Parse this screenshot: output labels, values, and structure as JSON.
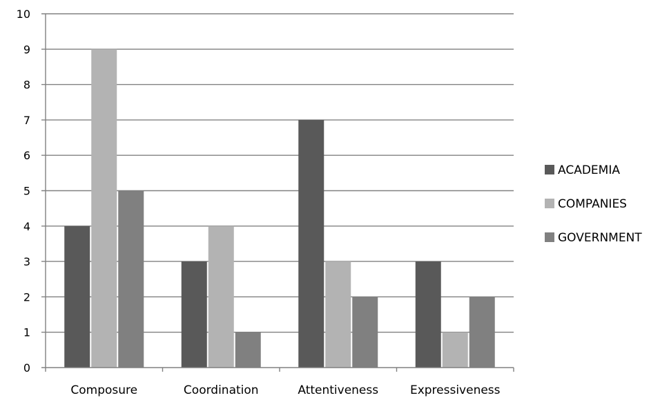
{
  "chart_data": {
    "type": "bar",
    "categories": [
      "Composure",
      "Coordination",
      "Attentiveness",
      "Expressiveness"
    ],
    "series": [
      {
        "name": "ACADEMIA",
        "values": [
          4,
          3,
          7,
          3
        ],
        "color": "#595959"
      },
      {
        "name": "COMPANIES",
        "values": [
          9,
          4,
          3,
          1
        ],
        "color": "#b3b3b3"
      },
      {
        "name": "GOVERNMENT",
        "values": [
          5,
          1,
          2,
          2
        ],
        "color": "#808080"
      }
    ],
    "ylim": [
      0,
      10
    ],
    "yticks": [
      0,
      1,
      2,
      3,
      4,
      5,
      6,
      7,
      8,
      9,
      10
    ],
    "grid": true,
    "legend_position": "right",
    "title": "",
    "xlabel": "",
    "ylabel": "",
    "gridline_color": "#808080"
  }
}
